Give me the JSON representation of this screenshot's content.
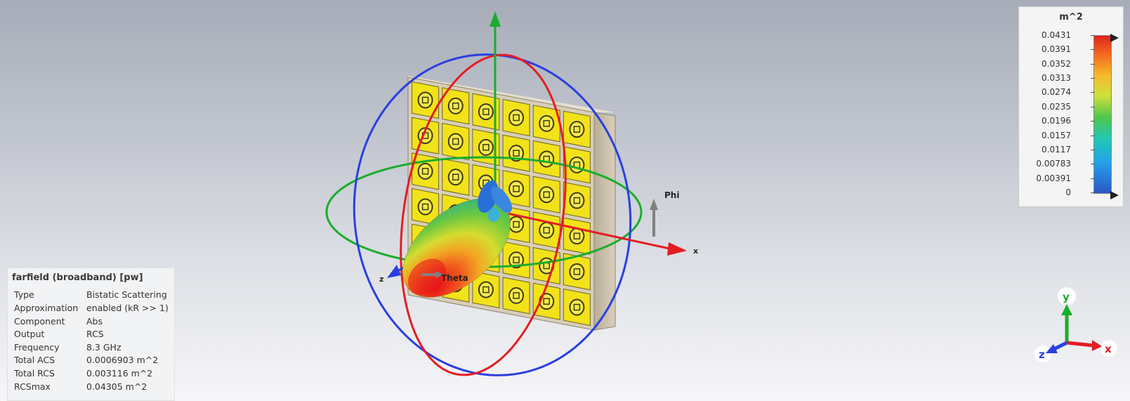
{
  "legend": {
    "unit": "m^2",
    "ticks": [
      "0.0431",
      "0.0391",
      "0.0352",
      "0.0313",
      "0.0274",
      "0.0235",
      "0.0196",
      "0.0157",
      "0.0117",
      "0.00783",
      "0.00391",
      "0"
    ]
  },
  "info": {
    "title": "farfield (broadband) [pw]",
    "rows": [
      {
        "key": "Type",
        "value": "Bistatic Scattering"
      },
      {
        "key": "Approximation",
        "value": "enabled (kR >> 1)"
      },
      {
        "key": "Component",
        "value": "Abs"
      },
      {
        "key": "Output",
        "value": "RCS"
      },
      {
        "key": "Frequency",
        "value": "8.3 GHz"
      },
      {
        "key": "Total ACS",
        "value": "0.0006903 m^2"
      },
      {
        "key": "Total RCS",
        "value": "0.003116 m^2"
      },
      {
        "key": "RCSmax",
        "value": "0.04305 m^2"
      }
    ]
  },
  "scene_labels": {
    "phi": "Phi",
    "theta": "Theta",
    "x": "x",
    "z": "z"
  },
  "triad": {
    "x": "x",
    "y": "y",
    "z": "z"
  },
  "colors": {
    "red": "#e51c23",
    "green": "#1aad2c",
    "blue": "#2a3fe0",
    "yellow": "#f2e21a",
    "board": "#d6cbb4"
  }
}
